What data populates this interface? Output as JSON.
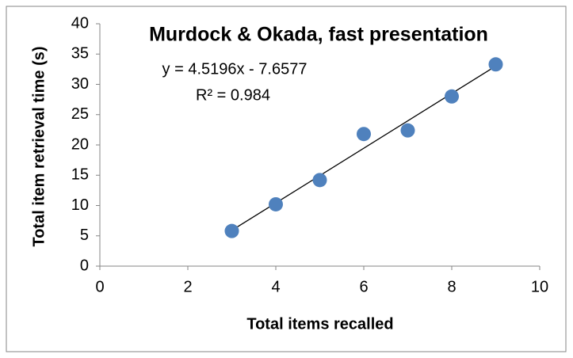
{
  "chart_data": {
    "type": "scatter",
    "title": "Murdock & Okada, fast presentation",
    "x_label": "Total items recalled",
    "y_label": "Total item retrieval time (s)",
    "x": [
      3,
      4,
      5,
      6,
      7,
      8,
      9
    ],
    "series": [
      {
        "name": "Murdock & Okada",
        "color": "#4f81bd",
        "values": [
          5.8,
          10.2,
          14.2,
          21.8,
          22.4,
          28,
          33.3
        ]
      }
    ],
    "trendline": {
      "equation": "y = 4.5196x - 7.6577",
      "r_squared": "R² = 0.984",
      "slope": 4.5196,
      "intercept": -7.6577,
      "color": "#000000"
    },
    "xlim": [
      0,
      10
    ],
    "xticks": [
      0,
      2,
      4,
      6,
      8,
      10
    ],
    "ylim": [
      0,
      40
    ],
    "yticks": [
      0,
      5,
      10,
      15,
      20,
      25,
      30,
      35,
      40
    ],
    "grid": false
  }
}
